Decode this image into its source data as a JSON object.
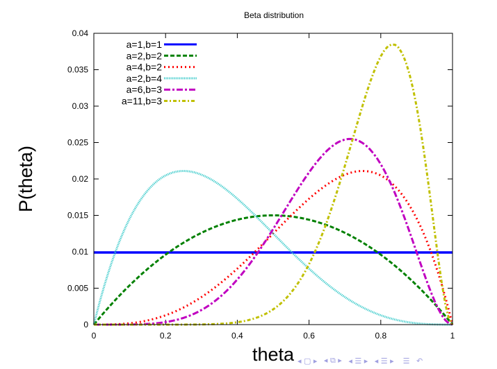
{
  "chart_data": {
    "type": "line",
    "title": "Beta distribution",
    "xlabel": "theta",
    "ylabel": "P(theta)",
    "xlim": [
      0,
      1
    ],
    "ylim": [
      0,
      0.04
    ],
    "x_ticks": [
      "0",
      "0.2",
      "0.4",
      "0.6",
      "0.8",
      "1"
    ],
    "y_ticks": [
      "0",
      "0.005",
      "0.01",
      "0.015",
      "0.02",
      "0.025",
      "0.03",
      "0.035",
      "0.04"
    ],
    "grid": false,
    "legend_position": "top-left",
    "x_step": 0.01,
    "normalization": "discrete sum = 1",
    "series": [
      {
        "name": "a=1,b=1",
        "a": 1,
        "b": 1,
        "color": "#0000ff",
        "style": "solid"
      },
      {
        "name": "a=2,b=2",
        "a": 2,
        "b": 2,
        "color": "#008000",
        "style": "dashed"
      },
      {
        "name": "a=4,b=2",
        "a": 4,
        "b": 2,
        "color": "#ff0000",
        "style": "dotted"
      },
      {
        "name": "a=2,b=4",
        "a": 2,
        "b": 4,
        "color": "#40cccc",
        "style": "fine-dotted"
      },
      {
        "name": "a=6,b=3",
        "a": 6,
        "b": 3,
        "color": "#c000c0",
        "style": "dash-dot"
      },
      {
        "name": "a=11,b=3",
        "a": 11,
        "b": 3,
        "color": "#c0c000",
        "style": "dash-dot-dot"
      }
    ]
  }
}
